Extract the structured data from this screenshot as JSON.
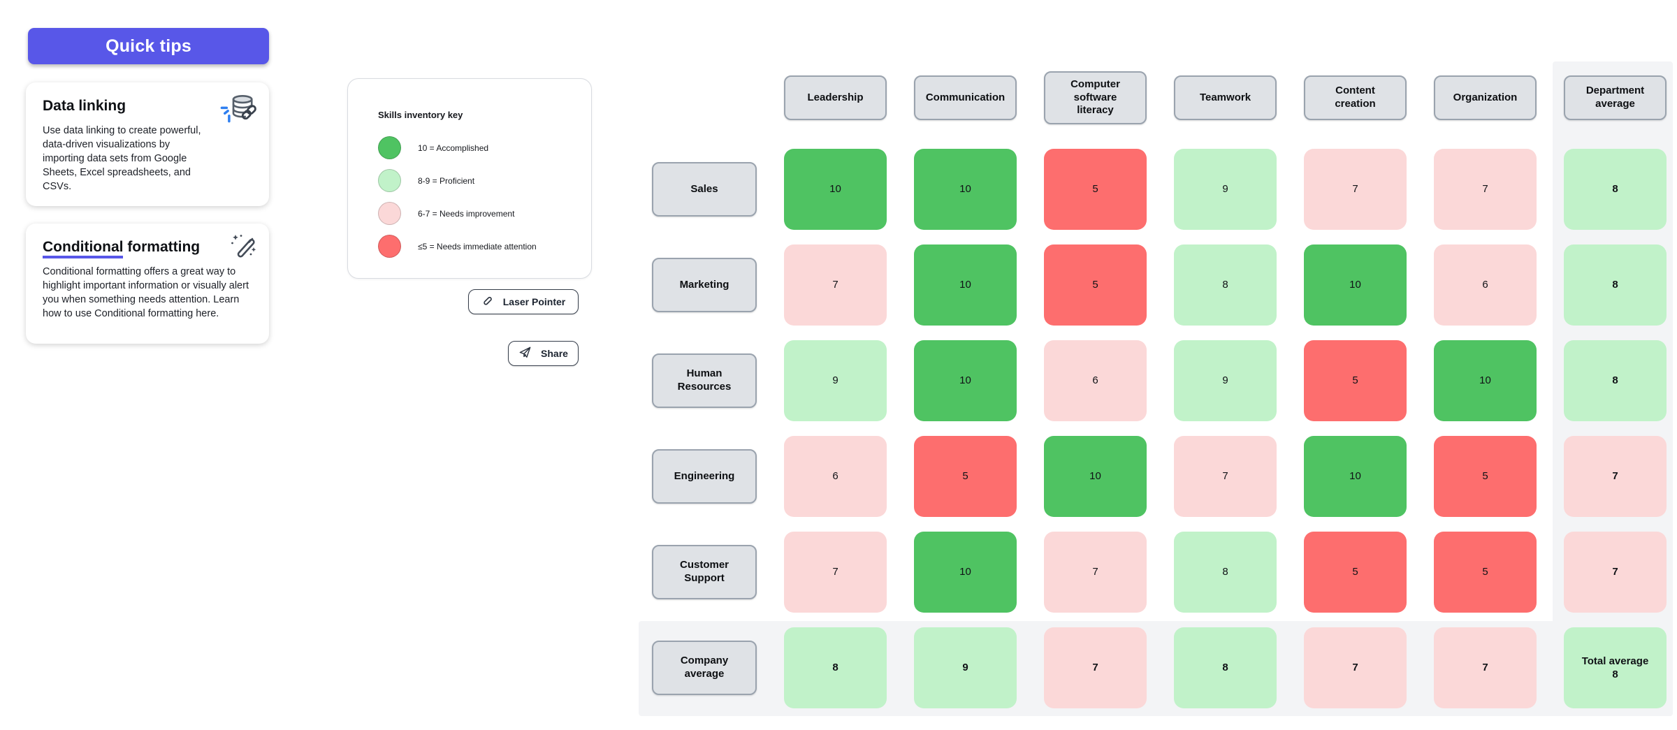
{
  "sidebar": {
    "quick_tips_label": "Quick tips",
    "accent_color": "#5857e8",
    "cards": [
      {
        "title": "Data linking",
        "icon": "database-link-icon",
        "body": "Use data linking to create powerful, data-driven visualizations by importing data sets from Google Sheets, Excel spreadsheets, and CSVs."
      },
      {
        "title_underlined": "Conditional",
        "title_rest": " formatting",
        "icon": "magic-wand-icon",
        "body": "Conditional formatting offers a great way to highlight important information or visually alert you when something needs attention. Learn how to use Conditional formatting here."
      }
    ]
  },
  "legend": {
    "title": "Skills inventory key",
    "items": [
      {
        "color": "#4fc362",
        "label": "10 = Accomplished"
      },
      {
        "color": "#c1f2c9",
        "label": "8-9 = Proficient"
      },
      {
        "color": "#fbd8d8",
        "label": "6-7 = Needs improvement"
      },
      {
        "color": "#fd6e6e",
        "label": "≤5 = Needs immediate attention"
      }
    ]
  },
  "toolbar": {
    "laser_pointer_label": "Laser Pointer",
    "share_label": "Share"
  },
  "chart_data": {
    "type": "heatmap",
    "columns": [
      "Leadership",
      "Communication",
      "Computer software literacy",
      "Teamwork",
      "Content creation",
      "Organization"
    ],
    "rows": [
      "Sales",
      "Marketing",
      "Human Resources",
      "Engineering",
      "Customer Support"
    ],
    "values": [
      [
        10,
        10,
        5,
        9,
        7,
        7
      ],
      [
        7,
        10,
        5,
        8,
        10,
        6
      ],
      [
        9,
        10,
        6,
        9,
        5,
        10
      ],
      [
        6,
        5,
        10,
        7,
        10,
        5
      ],
      [
        7,
        10,
        7,
        8,
        5,
        5
      ]
    ],
    "department_average_label": "Department average",
    "department_averages": [
      8,
      8,
      8,
      7,
      7
    ],
    "company_average_label": "Company average",
    "company_averages": [
      8,
      9,
      7,
      8,
      7,
      7
    ],
    "total_average_label": "Total average",
    "total_average": 8,
    "colors": {
      "accomplished": "#4fc362",
      "proficient": "#c1f2c9",
      "needs_improvement": "#fbd8d8",
      "needs_attention": "#fd6e6e"
    }
  }
}
